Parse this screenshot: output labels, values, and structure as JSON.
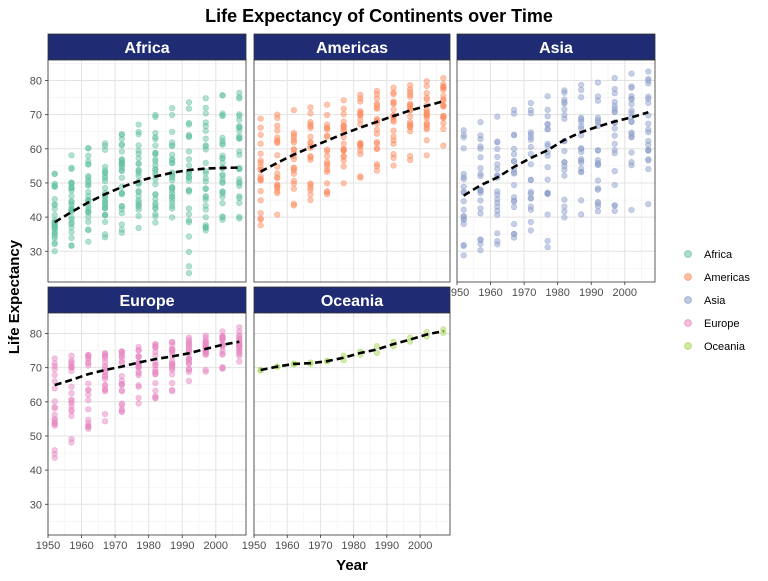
{
  "chart_data": {
    "type": "scatter",
    "title": "Life Expectancy of Continents over Time",
    "xlabel": "Year",
    "ylabel": "Life Expectancy",
    "xlim": [
      1950,
      2009
    ],
    "ylim": [
      21,
      86
    ],
    "x_ticks": [
      1950,
      1960,
      1970,
      1980,
      1990,
      2000
    ],
    "y_ticks": [
      30,
      40,
      50,
      60,
      70,
      80
    ],
    "grid": true,
    "legend_position": "right",
    "years": [
      1952,
      1957,
      1962,
      1967,
      1972,
      1977,
      1982,
      1987,
      1992,
      1997,
      2002,
      2007
    ],
    "trend_style": "dashed black line",
    "panel_strip_color": "#1f2c73",
    "series": [
      {
        "name": "Africa",
        "color": "#66c2a5",
        "trend": [
          38.5,
          41.5,
          44.3,
          46.7,
          48.8,
          50.5,
          51.9,
          53.0,
          53.8,
          54.2,
          54.4,
          54.5
        ],
        "spread": {
          "min": [
            30.0,
            31.6,
            32.8,
            34.1,
            35.4,
            36.8,
            38.4,
            39.9,
            23.6,
            36.1,
            39.2,
            39.6
          ],
          "max": [
            52.7,
            58.1,
            60.2,
            61.6,
            64.3,
            67.1,
            69.9,
            71.9,
            73.6,
            74.8,
            75.7,
            76.4
          ]
        }
      },
      {
        "name": "Americas",
        "color": "#fc8d62",
        "trend": [
          53.3,
          55.9,
          58.3,
          60.4,
          62.4,
          64.4,
          66.2,
          67.9,
          69.6,
          71.2,
          72.6,
          73.9
        ],
        "spread": {
          "min": [
            37.6,
            40.7,
            43.4,
            45.0,
            46.7,
            49.9,
            51.5,
            53.6,
            55.1,
            56.7,
            58.1,
            60.9
          ],
          "max": [
            68.8,
            70.0,
            71.3,
            72.1,
            72.9,
            74.2,
            75.8,
            76.9,
            77.9,
            78.6,
            79.8,
            80.7
          ]
        }
      },
      {
        "name": "Asia",
        "color": "#8da0cb",
        "trend": [
          46.3,
          49.3,
          51.6,
          54.7,
          57.3,
          59.6,
          62.6,
          64.9,
          66.5,
          68.0,
          69.2,
          70.7
        ],
        "spread": {
          "min": [
            28.8,
            30.3,
            32.0,
            34.0,
            36.1,
            31.2,
            39.9,
            40.8,
            41.7,
            41.8,
            42.1,
            43.8
          ],
          "max": [
            65.4,
            67.8,
            69.4,
            71.4,
            73.4,
            75.4,
            77.1,
            78.7,
            79.4,
            80.7,
            82.0,
            82.6
          ]
        }
      },
      {
        "name": "Europe",
        "color": "#e78ac3",
        "trend": [
          64.9,
          66.4,
          68.1,
          69.3,
          70.3,
          71.5,
          72.5,
          73.3,
          74.2,
          75.5,
          76.7,
          77.6
        ],
        "spread": {
          "min": [
            43.6,
            48.1,
            52.1,
            54.3,
            57.0,
            59.5,
            61.0,
            63.1,
            66.1,
            68.8,
            69.7,
            71.8
          ],
          "max": [
            72.7,
            73.5,
            73.7,
            74.2,
            74.7,
            76.1,
            76.9,
            77.5,
            78.8,
            79.4,
            80.6,
            81.8
          ]
        }
      },
      {
        "name": "Oceania",
        "color": "#a6d854",
        "trend": [
          69.3,
          70.3,
          71.1,
          71.3,
          71.9,
          72.9,
          74.3,
          75.3,
          76.9,
          78.2,
          79.7,
          80.7
        ],
        "points": [
          [
            69.1,
            69.4
          ],
          [
            70.3,
            70.3
          ],
          [
            70.9,
            71.2
          ],
          [
            71.1,
            71.5
          ],
          [
            71.9,
            71.9
          ],
          [
            72.2,
            73.5
          ],
          [
            73.8,
            74.7
          ],
          [
            74.3,
            76.3
          ],
          [
            76.3,
            77.6
          ],
          [
            77.6,
            78.8
          ],
          [
            79.1,
            80.4
          ],
          [
            80.2,
            81.2
          ]
        ]
      }
    ]
  }
}
